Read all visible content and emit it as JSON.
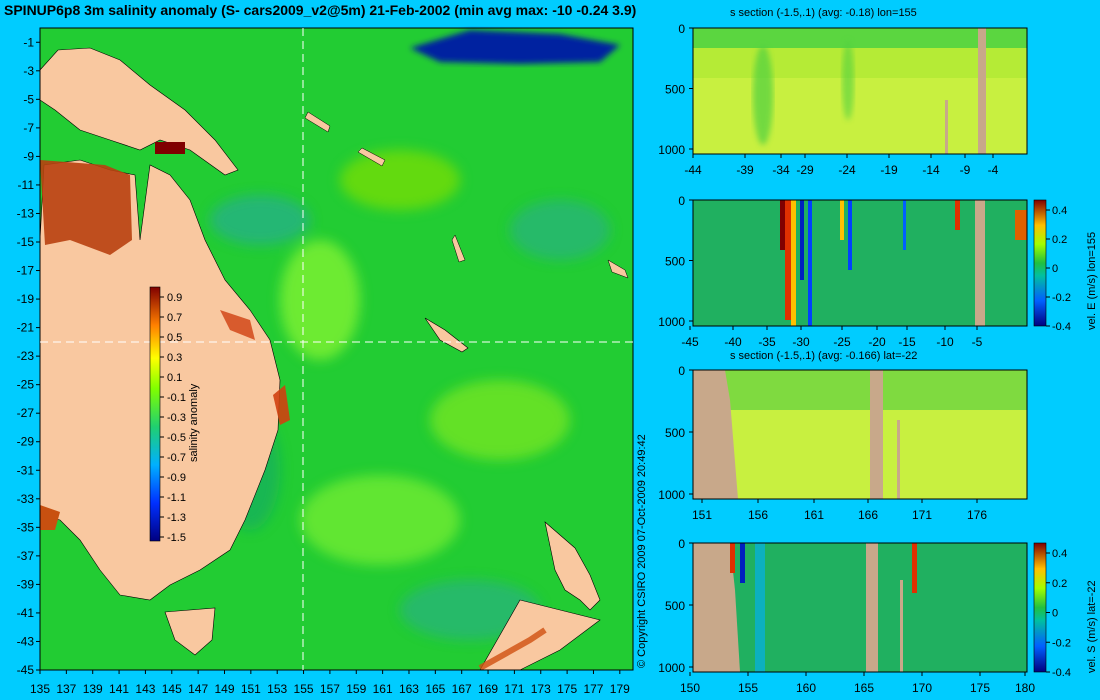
{
  "title": "SPINUP6p8 3m salinity anomaly (S- cars2009_v2@5m) 21-Feb-2002 (min avg max: -10 -0.24 3.9)",
  "copyright": "© Copyright CSIRO 2009   07-Oct-2009 20:49:42",
  "colors": {
    "background": "#00ccff",
    "ocean": "#22cc33",
    "land_map": "#f9c8a0",
    "land_section": "#c8a88a"
  },
  "chart_data": [
    {
      "type": "heatmap",
      "name": "map",
      "xticks": [
        135,
        137,
        139,
        141,
        143,
        145,
        147,
        149,
        151,
        153,
        155,
        157,
        159,
        161,
        163,
        165,
        167,
        169,
        171,
        173,
        175,
        177,
        179
      ],
      "yticks": [
        -1,
        -3,
        -5,
        -7,
        -9,
        -11,
        -13,
        -15,
        -17,
        -19,
        -21,
        -23,
        -25,
        -27,
        -29,
        -31,
        -33,
        -35,
        -37,
        -39,
        -41,
        -43,
        -45
      ],
      "xlim": [
        135,
        180
      ],
      "ylim": [
        -45,
        0
      ],
      "section_lon": 155,
      "section_lat": -22,
      "colorbar": {
        "label": "salinity anomaly",
        "ticks": [
          "0.9",
          "0.7",
          "0.5",
          "0.3",
          "0.1",
          "-0.1",
          "-0.3",
          "-0.5",
          "-0.7",
          "-0.9",
          "-1.1",
          "-1.3",
          "-1.5"
        ],
        "range": [
          -1.5,
          0.9
        ]
      }
    },
    {
      "type": "heatmap",
      "name": "section-1",
      "title": "s section (-1.5,.1) (avg: -0.18) lon=155",
      "xticks": [
        "-44",
        "-39",
        "-34",
        "-29",
        "-24",
        "-19",
        "-14",
        "-9",
        "-4"
      ],
      "yticks": [
        "0",
        "500",
        "1000"
      ]
    },
    {
      "type": "heatmap",
      "name": "section-2",
      "xticks": [
        "-45",
        "-40",
        "-35",
        "-30",
        "-25",
        "-20",
        "-15",
        "-10",
        "-5"
      ],
      "yticks": [
        "0",
        "500",
        "1000"
      ],
      "colorbar": {
        "label": "vel. E (m/s) lon=155",
        "ticks": [
          "0.4",
          "0.2",
          "0",
          "-0.2",
          "-0.4"
        ],
        "range": [
          -0.4,
          0.4
        ]
      }
    },
    {
      "type": "heatmap",
      "name": "section-3",
      "title": "s section (-1.5,.1) (avg: -0.166) lat=-22",
      "xticks": [
        "151",
        "156",
        "161",
        "166",
        "171",
        "176"
      ],
      "yticks": [
        "0",
        "500",
        "1000"
      ]
    },
    {
      "type": "heatmap",
      "name": "section-4",
      "xticks": [
        "150",
        "155",
        "160",
        "165",
        "170",
        "175",
        "180"
      ],
      "yticks": [
        "0",
        "500",
        "1000"
      ],
      "colorbar": {
        "label": "vel. S (m/s) lat=-22",
        "ticks": [
          "0.4",
          "0.2",
          "0",
          "-0.2",
          "-0.4"
        ],
        "range": [
          -0.4,
          0.4
        ]
      }
    }
  ]
}
